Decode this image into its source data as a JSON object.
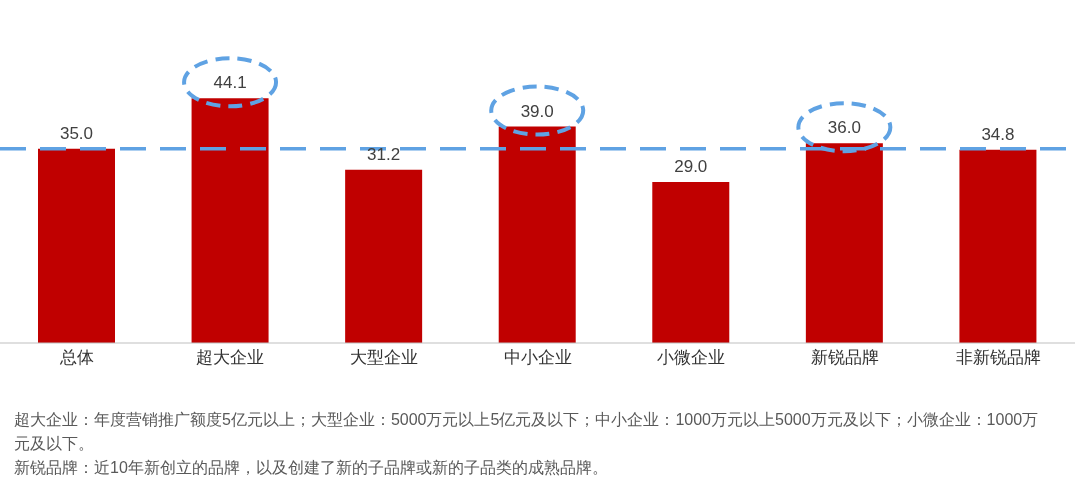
{
  "chart_data": {
    "type": "bar",
    "categories": [
      "总体",
      "超大企业",
      "大型企业",
      "中小企业",
      "小微企业",
      "新锐品牌",
      "非新锐品牌"
    ],
    "values": [
      35.0,
      44.1,
      31.2,
      39.0,
      29.0,
      36.0,
      34.8
    ],
    "color": "#c00000",
    "tick_labels": "x",
    "value_labels": [
      "35.0",
      "44.1",
      "31.2",
      "39.0",
      "29.0",
      "36.0",
      "34.8"
    ],
    "grid": false,
    "legend": false,
    "ref_lines": [
      {
        "axis": "y",
        "value": 35.0,
        "color": "#5fa2e3",
        "line_style": "dashed"
      }
    ],
    "annotations": [
      "超大企业：年度营销推广额度5亿元以上；大型企业：5000万元以上5亿元及以下；中小企业：1000万元以上5000万元及以下；小微企业：1000万元及以下。",
      "新锐品牌：近10年新创立的品牌，以及创建了新的子品牌或新的子品类的成熟品牌。"
    ]
  }
}
